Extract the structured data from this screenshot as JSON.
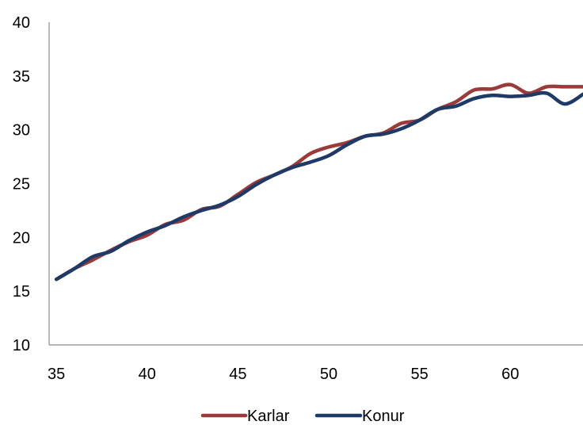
{
  "chart_data": {
    "type": "line",
    "title": "",
    "xlabel": "",
    "ylabel": "",
    "xlim": [
      35,
      64
    ],
    "ylim": [
      10,
      40
    ],
    "x_ticks": [
      35,
      40,
      45,
      50,
      55,
      60
    ],
    "y_ticks": [
      10,
      15,
      20,
      25,
      30,
      35,
      40
    ],
    "grid": false,
    "legend_position": "bottom",
    "series": [
      {
        "name": "Karlar",
        "color": "#9B3A3A",
        "x": [
          35,
          36,
          37,
          38,
          39,
          40,
          41,
          42,
          43,
          44,
          45,
          46,
          47,
          48,
          49,
          50,
          51,
          52,
          53,
          54,
          55,
          56,
          57,
          58,
          59,
          60,
          61,
          62,
          63,
          64
        ],
        "y": [
          16.1,
          17.1,
          17.9,
          18.8,
          19.6,
          20.2,
          21.2,
          21.6,
          22.6,
          22.9,
          24.0,
          25.1,
          25.8,
          26.6,
          27.8,
          28.4,
          28.8,
          29.4,
          29.7,
          30.6,
          30.9,
          31.9,
          32.6,
          33.7,
          33.8,
          34.2,
          33.4,
          34.0,
          34.0,
          34.0
        ]
      },
      {
        "name": "Konur",
        "color": "#1F3A66",
        "x": [
          35,
          36,
          37,
          38,
          39,
          40,
          41,
          42,
          43,
          44,
          45,
          46,
          47,
          48,
          49,
          50,
          51,
          52,
          53,
          54,
          55,
          56,
          57,
          58,
          59,
          60,
          61,
          62,
          63,
          64
        ],
        "y": [
          16.1,
          17.1,
          18.2,
          18.7,
          19.7,
          20.5,
          21.1,
          21.9,
          22.5,
          23.0,
          23.8,
          24.9,
          25.8,
          26.5,
          27.0,
          27.6,
          28.6,
          29.4,
          29.6,
          30.1,
          30.9,
          31.9,
          32.2,
          32.9,
          33.2,
          33.1,
          33.2,
          33.4,
          32.4,
          33.3
        ]
      }
    ]
  }
}
